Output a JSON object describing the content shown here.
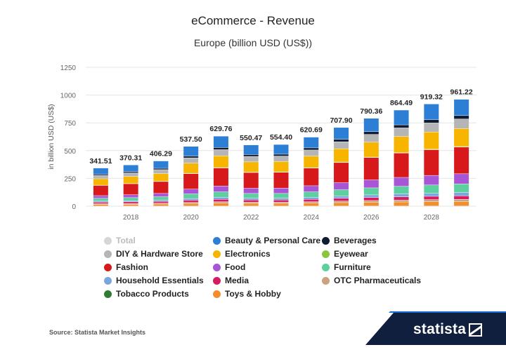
{
  "chart_data": {
    "type": "bar",
    "stacked": true,
    "title": "eCommerce - Revenue",
    "subtitle": "Europe (billion USD (US$))",
    "ylabel": "in billion USD (US$)",
    "ylim": [
      0,
      1250
    ],
    "yticks": [
      0,
      250,
      500,
      750,
      1000,
      1250
    ],
    "xtick_labels": [
      "2018",
      "2020",
      "2022",
      "2024",
      "2026",
      "2028"
    ],
    "grid": true,
    "legend_position": "bottom",
    "categories": [
      "2017",
      "2018",
      "2019",
      "2020",
      "2021",
      "2022",
      "2023",
      "2024",
      "2025",
      "2026",
      "2027",
      "2028",
      "2029"
    ],
    "totals": [
      341.51,
      370.31,
      406.29,
      537.5,
      629.76,
      550.47,
      554.4,
      620.69,
      707.9,
      790.36,
      864.49,
      919.32,
      961.22
    ],
    "total_labels": [
      "341.51",
      "370.31",
      "406.29",
      "537.50",
      "629.76",
      "550.47",
      "554.40",
      "620.69",
      "707.90",
      "790.36",
      "864.49",
      "919.32",
      "961.22"
    ],
    "series": [
      {
        "name": "Toys & Hobby",
        "color": "#f28e2b",
        "values": [
          14,
          15,
          17,
          22,
          26,
          23,
          23,
          26,
          30,
          33,
          36,
          38,
          40
        ]
      },
      {
        "name": "OTC Pharmaceuticals",
        "color": "#c9a27e",
        "values": [
          6,
          7,
          8,
          10,
          12,
          11,
          11,
          12,
          14,
          16,
          17,
          19,
          20
        ]
      },
      {
        "name": "Media",
        "color": "#d81b60",
        "values": [
          14,
          15,
          16,
          20,
          22,
          20,
          20,
          22,
          25,
          27,
          29,
          30,
          31
        ]
      },
      {
        "name": "Household Essentials",
        "color": "#7aa6e0",
        "values": [
          9,
          10,
          11,
          15,
          18,
          16,
          16,
          18,
          21,
          24,
          26,
          28,
          30
        ]
      },
      {
        "name": "Furniture",
        "color": "#5ecf9e",
        "values": [
          26,
          28,
          31,
          42,
          49,
          43,
          43,
          49,
          56,
          63,
          69,
          74,
          78
        ]
      },
      {
        "name": "Food",
        "color": "#a855d6",
        "values": [
          24,
          26,
          30,
          43,
          53,
          47,
          48,
          55,
          64,
          72,
          80,
          86,
          91
        ]
      },
      {
        "name": "Fashion",
        "color": "#d7191c",
        "values": [
          92,
          99,
          107,
          139,
          162,
          141,
          142,
          159,
          181,
          201,
          219,
          231,
          240
        ]
      },
      {
        "name": "Eyewear",
        "color": "#8cc63e",
        "values": [
          2,
          2,
          2,
          3,
          3,
          3,
          3,
          3,
          4,
          4,
          4,
          5,
          5
        ]
      },
      {
        "name": "Electronics",
        "color": "#f7b500",
        "values": [
          58,
          63,
          69,
          91,
          106,
          93,
          94,
          105,
          120,
          134,
          146,
          155,
          162
        ]
      },
      {
        "name": "DIY & Hardware Store",
        "color": "#b5b5b5",
        "values": [
          30,
          33,
          36,
          48,
          56,
          49,
          49,
          55,
          63,
          70,
          77,
          82,
          86
        ]
      },
      {
        "name": "Beverages",
        "color": "#0f1b33",
        "values": [
          10,
          11,
          12,
          16,
          19,
          17,
          17,
          19,
          22,
          25,
          27,
          29,
          31
        ]
      },
      {
        "name": "Beauty & Personal Care",
        "color": "#2d7fd6",
        "values": [
          56.51,
          60.31,
          66.29,
          87.5,
          102.76,
          86.47,
          87.4,
          96.69,
          106.9,
          120.36,
          133.49,
          141.32,
          146.22
        ]
      }
    ]
  },
  "legend": [
    {
      "label": "Total",
      "color": "#d6d6d6",
      "muted": true
    },
    {
      "label": "Beauty & Personal Care",
      "color": "#2d7fd6"
    },
    {
      "label": "Beverages",
      "color": "#0f1b33"
    },
    {
      "label": "DIY & Hardware Store",
      "color": "#b5b5b5"
    },
    {
      "label": "Electronics",
      "color": "#f7b500"
    },
    {
      "label": "Eyewear",
      "color": "#8cc63e"
    },
    {
      "label": "Fashion",
      "color": "#d7191c"
    },
    {
      "label": "Food",
      "color": "#a855d6"
    },
    {
      "label": "Furniture",
      "color": "#5ecf9e"
    },
    {
      "label": "Household Essentials",
      "color": "#7aa6e0"
    },
    {
      "label": "Media",
      "color": "#d81b60"
    },
    {
      "label": "OTC Pharmaceuticals",
      "color": "#c9a27e"
    },
    {
      "label": "Tobacco Products",
      "color": "#2e7d32"
    },
    {
      "label": "Toys & Hobby",
      "color": "#f28e2b"
    }
  ],
  "source": "Source: Statista Market Insights",
  "brand": "statista",
  "colors": {
    "footer": "#0f1f3d",
    "accent": "#1b6fd1",
    "grid": "#e4e4e4"
  }
}
